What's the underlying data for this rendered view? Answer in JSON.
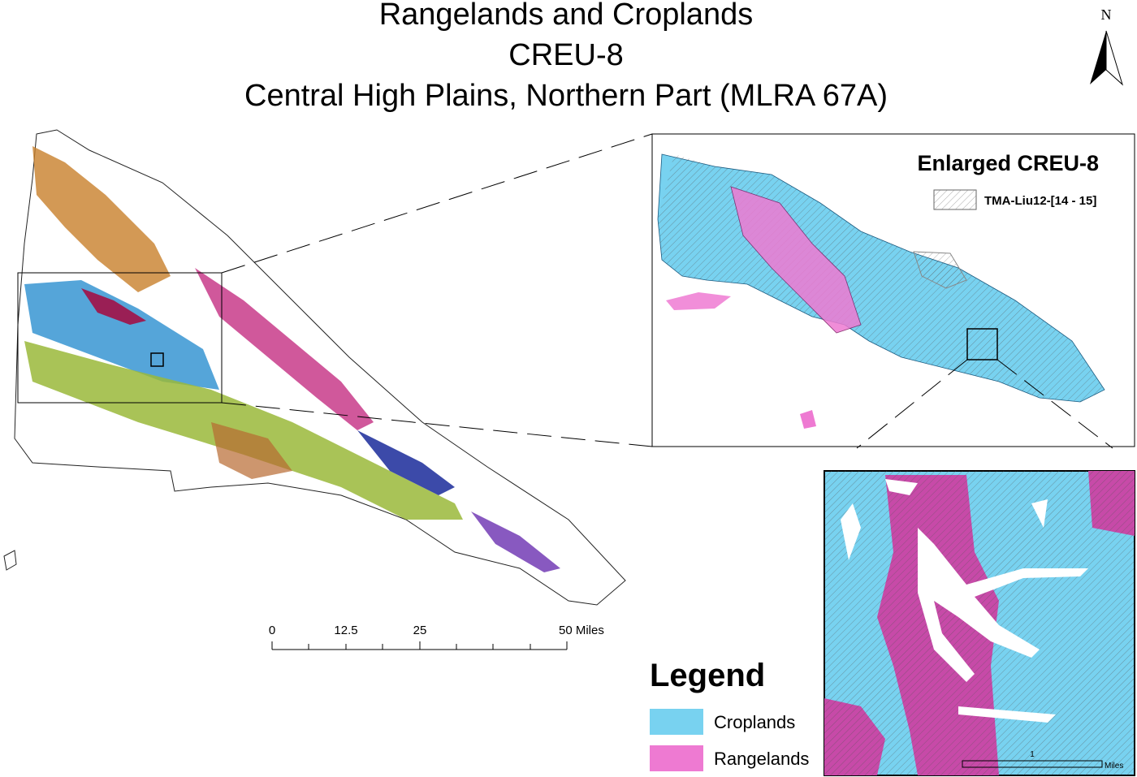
{
  "header": {
    "title_lines": [
      "Rangelands and Croplands",
      "CREU-8",
      "Central High Plains, Northern Part (MLRA 67A)"
    ]
  },
  "north_arrow": {
    "label": "N"
  },
  "scale_bar": {
    "labels": [
      "0",
      "12.5",
      "25",
      "50 Miles"
    ]
  },
  "enlarged": {
    "title": "Enlarged CREU-8",
    "hatch_label": "TMA-Liu12-[14 - 15]"
  },
  "legend": {
    "title": "Legend",
    "items": [
      {
        "label": "Croplands",
        "color": "#78d2f0"
      },
      {
        "label": "Rangelands",
        "color": "#ee7ad2"
      }
    ]
  },
  "zoom_scale": {
    "value_label": "1",
    "unit": "Miles"
  }
}
